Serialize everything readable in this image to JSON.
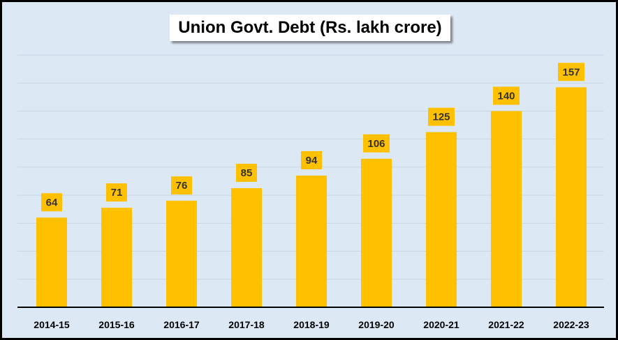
{
  "colors": {
    "bar": "#ffc000",
    "background": "#dde8f5",
    "gridline": "#c9d5e3",
    "axis": "#000000",
    "label_text": "#333333"
  },
  "chart_data": {
    "type": "bar",
    "title": "Union Govt. Debt (Rs. lakh crore)",
    "categories": [
      "2014-15",
      "2015-16",
      "2016-17",
      "2017-18",
      "2018-19",
      "2019-20",
      "2020-21",
      "2021-22",
      "2022-23"
    ],
    "values": [
      64,
      71,
      76,
      85,
      94,
      106,
      125,
      140,
      157
    ],
    "xlabel": "",
    "ylabel": "",
    "ylim": [
      0,
      180
    ],
    "grid": true,
    "legend": "none",
    "data_labels": true
  }
}
